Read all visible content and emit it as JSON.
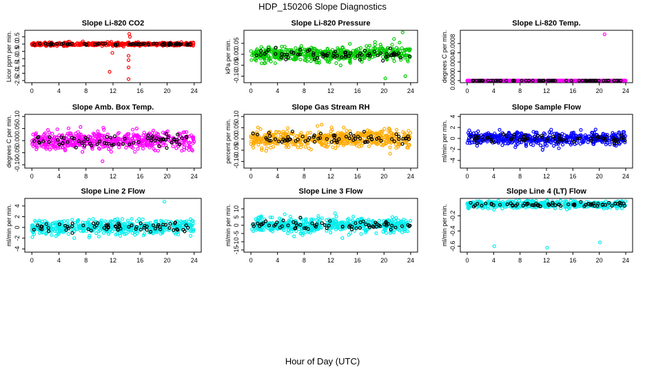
{
  "figure": {
    "title": "HDP_150206  Slope Diagnostics",
    "xlabel": "Hour of Day (UTC)"
  },
  "chart_data": [
    {
      "type": "scatter",
      "title": "Slope Li-820 CO2",
      "ylabel": "Licor ppm per min.",
      "xlim": [
        0,
        24
      ],
      "xticks": [
        0,
        4,
        8,
        12,
        16,
        20,
        24
      ],
      "ylim": [
        -2.5,
        0.8
      ],
      "yticks": [
        0.5,
        0.0,
        -0.5,
        -1.0,
        -1.5,
        -2.0,
        -2.5
      ],
      "ytick_labels": [
        "0.5",
        "0.0",
        "-0.5",
        "-1.0",
        "-1.5",
        "-2.0",
        "-2.5"
      ],
      "color": "#ff0000",
      "spread": 0.1,
      "outliers": [
        {
          "x": 11.5,
          "y": -1.9
        },
        {
          "x": 14.3,
          "y": -2.4
        },
        {
          "x": 14.4,
          "y": 0.7
        },
        {
          "x": 14.3,
          "y": -0.8
        },
        {
          "x": 14.3,
          "y": -1.1
        },
        {
          "x": 14.5,
          "y": 0.5
        },
        {
          "x": 14.3,
          "y": -1.6
        },
        {
          "x": 11.9,
          "y": -0.6
        }
      ]
    },
    {
      "type": "scatter",
      "title": "Slope Li-820 Pressure",
      "ylabel": "kPa per min.",
      "xlim": [
        0,
        24
      ],
      "xticks": [
        0,
        4,
        8,
        12,
        16,
        20,
        24
      ],
      "ylim": [
        -0.12,
        0.1
      ],
      "yticks": [
        0.05,
        0.0,
        -0.05,
        -0.1
      ],
      "ytick_labels": [
        "0.05",
        "0.00",
        "-0.05",
        "-0.10"
      ],
      "color": "#00cc00",
      "spread": 0.03,
      "outliers": [
        {
          "x": 22.8,
          "y": 0.1
        },
        {
          "x": 21.5,
          "y": 0.07
        },
        {
          "x": 20.2,
          "y": -0.11
        },
        {
          "x": 23.2,
          "y": -0.1
        }
      ]
    },
    {
      "type": "scatter",
      "title": "Slope Li-820 Temp.",
      "ylabel": "degrees C per min.",
      "xlim": [
        0,
        24
      ],
      "xticks": [
        0,
        4,
        8,
        12,
        16,
        20,
        24
      ],
      "ylim": [
        0,
        0.00104
      ],
      "yticks": [
        0.0,
        0.0002,
        0.0004,
        0.0006,
        0.0008
      ],
      "ytick_labels": [
        "0.0000",
        "0.0004",
        "0.0008"
      ],
      "ytick_label_values": [
        0.0,
        0.0004,
        0.0008
      ],
      "color": "#ff00ff",
      "spread": 0.0,
      "outliers": [
        {
          "x": 20.8,
          "y": 0.001
        }
      ]
    },
    {
      "type": "scatter",
      "title": "Slope Amb. Box Temp.",
      "ylabel": "degrees C per min.",
      "xlim": [
        0,
        24
      ],
      "xticks": [
        0,
        4,
        8,
        12,
        16,
        20,
        24
      ],
      "ylim": [
        -0.105,
        0.1
      ],
      "yticks": [
        0.1,
        0.05,
        0.0,
        -0.05,
        -0.1
      ],
      "ytick_labels": [
        "0.10",
        "0.05",
        "0.00",
        "-0.05",
        "-0.10"
      ],
      "color": "#ff00ff",
      "spread": 0.035,
      "outliers": []
    },
    {
      "type": "scatter",
      "title": "Slope Gas Stream RH",
      "ylabel": "percent per min.",
      "xlim": [
        0,
        24
      ],
      "xticks": [
        0,
        4,
        8,
        12,
        16,
        20,
        24
      ],
      "ylim": [
        -0.12,
        0.1
      ],
      "yticks": [
        0.1,
        0.05,
        0.0,
        -0.05,
        -0.1
      ],
      "ytick_labels": [
        "0.10",
        "0.05",
        "0.00",
        "-0.05",
        "-0.10"
      ],
      "color": "#ffaa00",
      "spread": 0.035,
      "outliers": []
    },
    {
      "type": "scatter",
      "title": "Slope Sample Flow",
      "ylabel": "ml/min per min.",
      "xlim": [
        0,
        24
      ],
      "xticks": [
        0,
        4,
        8,
        12,
        16,
        20,
        24
      ],
      "ylim": [
        -5,
        4
      ],
      "yticks": [
        4,
        2,
        0,
        -2,
        -4
      ],
      "ytick_labels": [
        "4",
        "2",
        "0",
        "-2",
        "-4"
      ],
      "color": "#0000ff",
      "spread": 1.1,
      "outliers": []
    },
    {
      "type": "scatter",
      "title": "Slope Line 2 Flow",
      "ylabel": "ml/min per min.",
      "xlim": [
        0,
        24
      ],
      "xticks": [
        0,
        4,
        8,
        12,
        16,
        20,
        24
      ],
      "ylim": [
        -4.2,
        5
      ],
      "yticks": [
        4,
        2,
        0,
        -2,
        -4
      ],
      "ytick_labels": [
        "4",
        "2",
        "0",
        "-2",
        "-4"
      ],
      "color": "#00eeee",
      "spread": 1.2,
      "outliers": [
        {
          "x": 19.6,
          "y": 4.8
        }
      ]
    },
    {
      "type": "scatter",
      "title": "Slope Line 3 Flow",
      "ylabel": "ml/min per min.",
      "xlim": [
        0,
        24
      ],
      "xticks": [
        0,
        4,
        8,
        12,
        16,
        20,
        24
      ],
      "ylim": [
        -15,
        15
      ],
      "yticks": [
        10,
        5,
        0,
        -5,
        -10,
        -15
      ],
      "ytick_labels": [
        "10",
        "5",
        "0",
        "-5",
        "-10",
        "-15"
      ],
      "color": "#00eeee",
      "spread": 4.0,
      "outliers": []
    },
    {
      "type": "scatter",
      "title": "Slope Line 4 (LT) Flow",
      "ylabel": "ml/min per min.",
      "xlim": [
        0,
        24
      ],
      "xticks": [
        0,
        4,
        8,
        12,
        16,
        20,
        24
      ],
      "ylim": [
        -0.65,
        0.0
      ],
      "yticks": [
        -0.2,
        -0.4,
        -0.6
      ],
      "ytick_labels": [
        "-0.2",
        "-0.4",
        "-0.6"
      ],
      "color": "#00eeee",
      "spread": 0.04,
      "center": -0.05,
      "outliers": [
        {
          "x": 4.1,
          "y": -0.6
        },
        {
          "x": 12.1,
          "y": -0.62
        },
        {
          "x": 20.1,
          "y": -0.55
        }
      ]
    }
  ]
}
